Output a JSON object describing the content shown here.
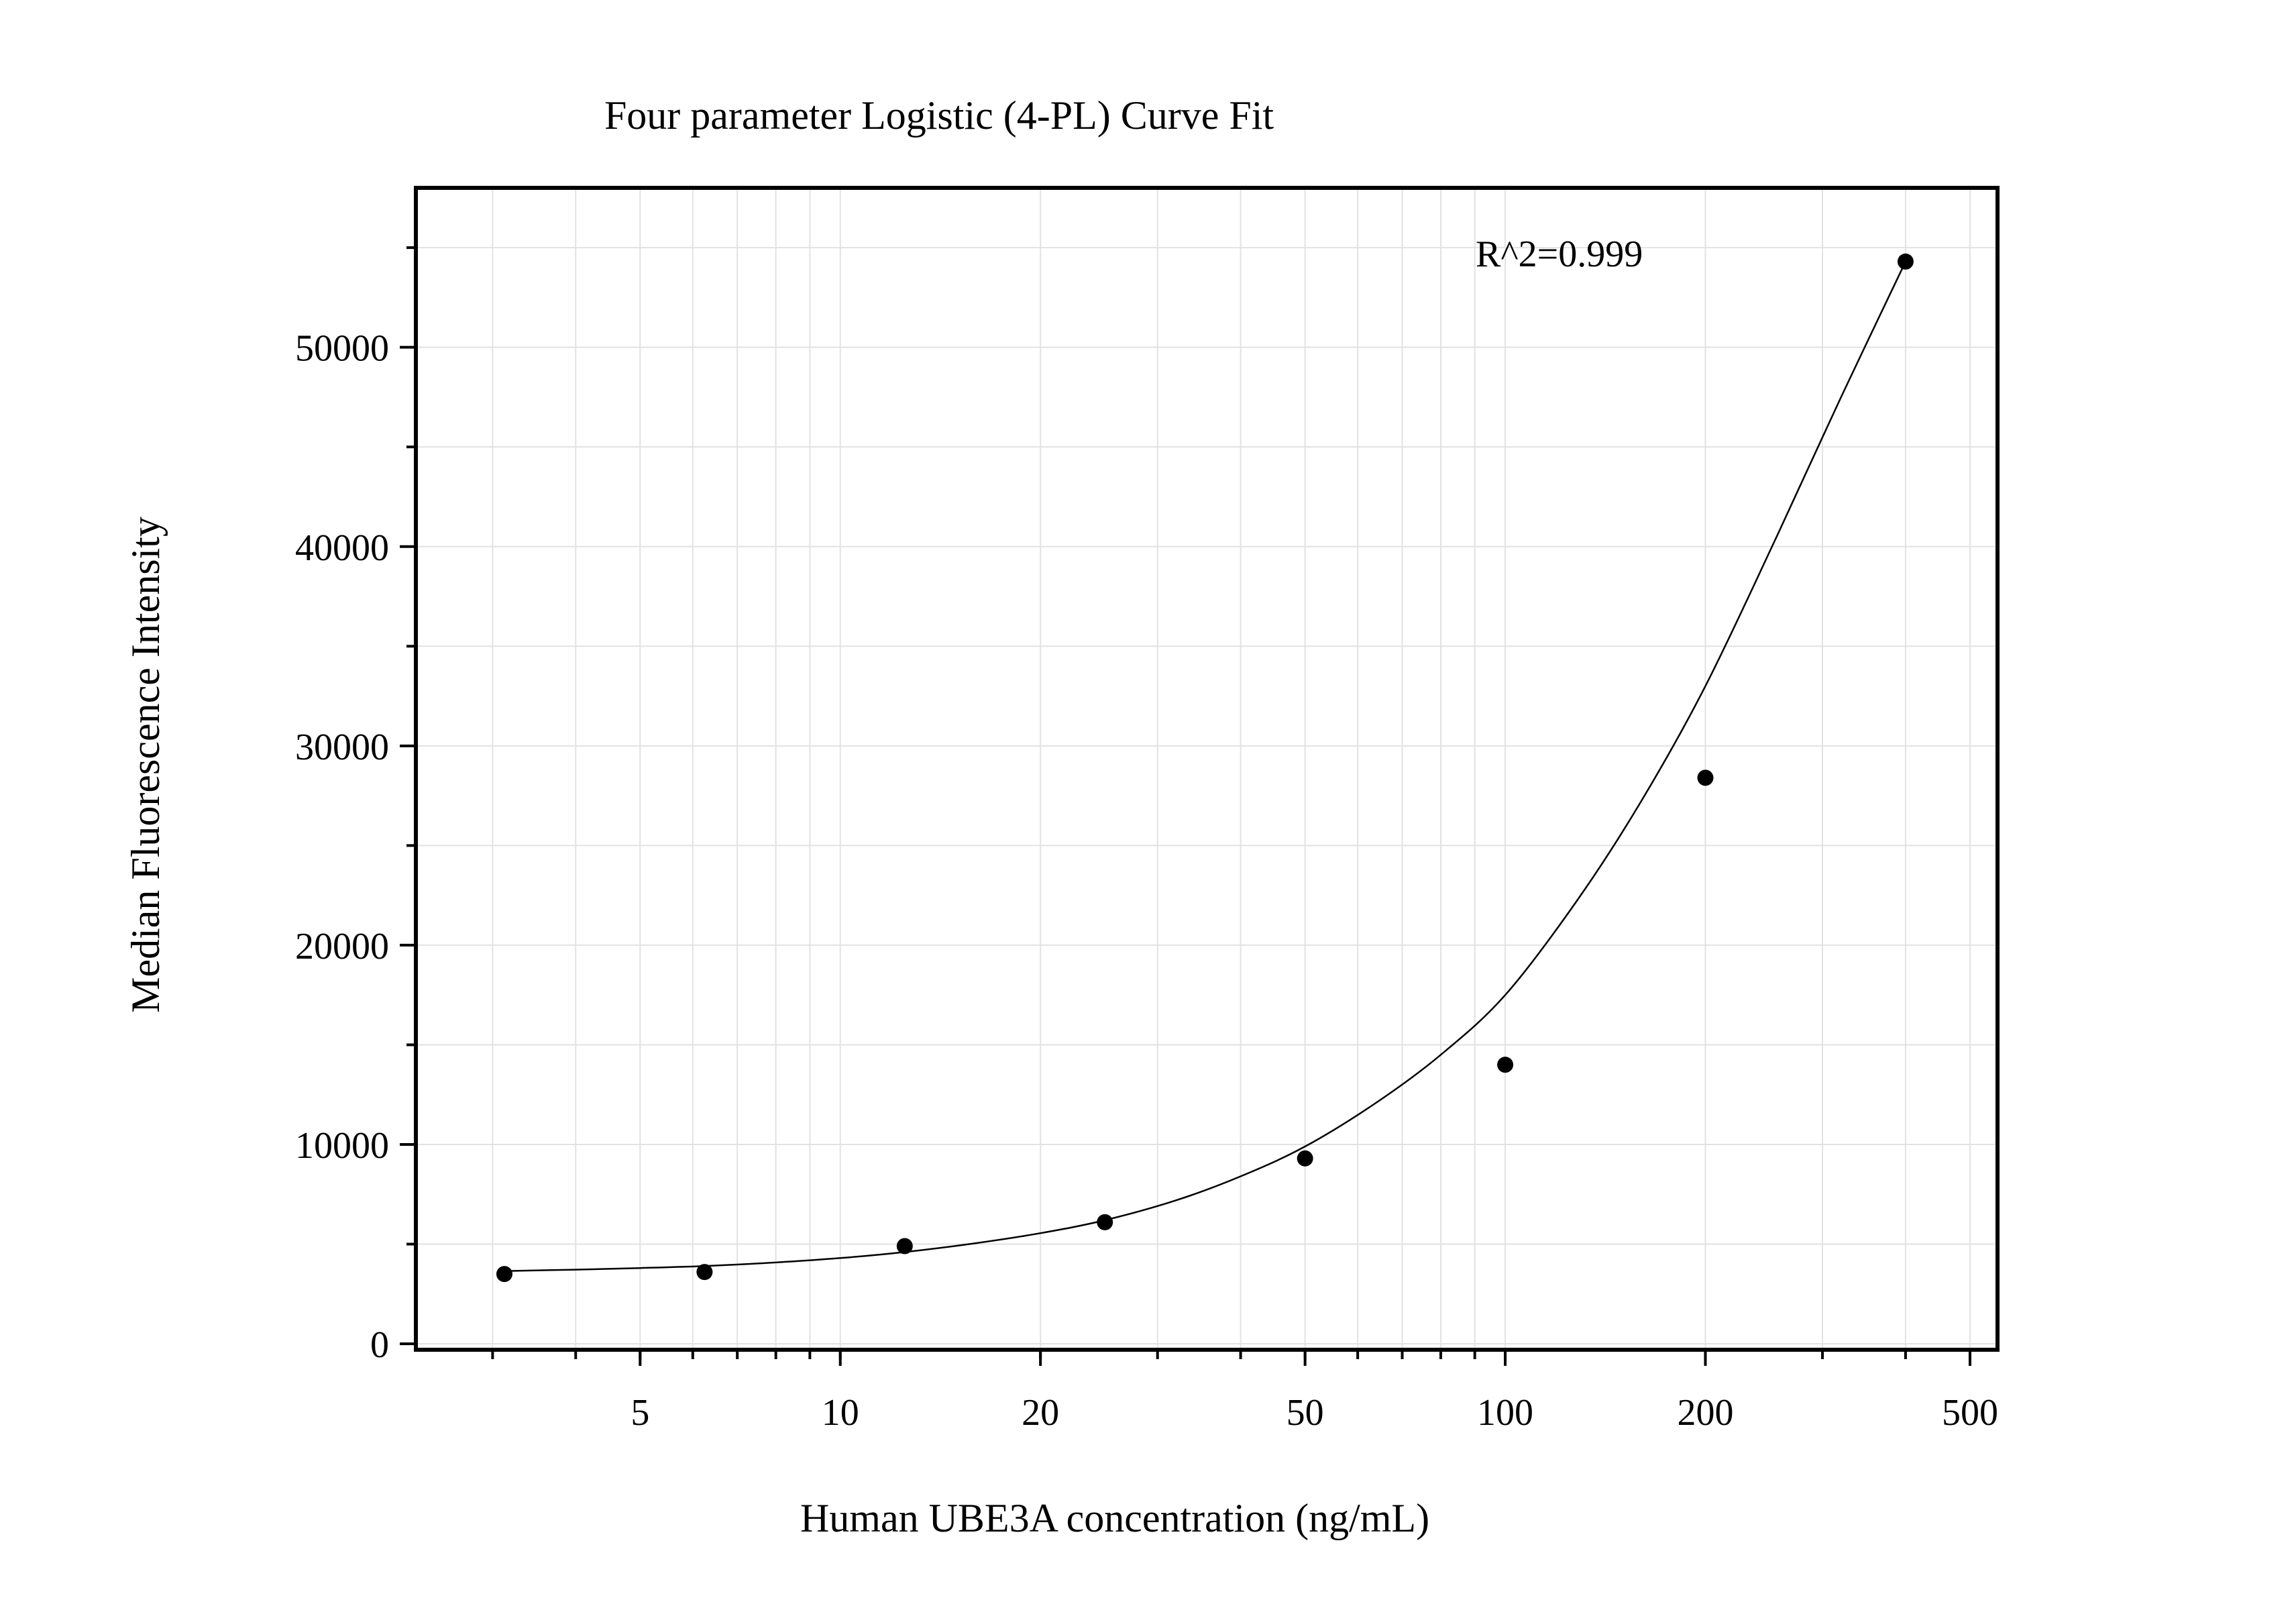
{
  "chart_data": {
    "type": "scatter",
    "title": "Four parameter Logistic (4-PL) Curve Fit",
    "xlabel": "Human UBE3A concentration (ng/mL)",
    "ylabel": "Median Fluorescence Intensity",
    "annotation": "R^2=0.999",
    "x_scale": "log",
    "xlim": [
      2.3,
      550
    ],
    "ylim": [
      -300,
      58000
    ],
    "x_ticks": [
      5,
      10,
      20,
      50,
      100,
      200,
      500
    ],
    "x_tick_labels": [
      "5",
      "10",
      "20",
      "50",
      "100",
      "200",
      "500"
    ],
    "y_ticks": [
      0,
      10000,
      20000,
      30000,
      40000,
      50000
    ],
    "y_tick_labels": [
      "0",
      "10000",
      "20000",
      "30000",
      "40000",
      "50000"
    ],
    "grid": true,
    "series": [
      {
        "kind": "points",
        "x": [
          3.125,
          6.25,
          12.5,
          25,
          50,
          100,
          200,
          400
        ],
        "y": [
          3500,
          3600,
          4900,
          6100,
          9300,
          14000,
          28400,
          54300
        ]
      },
      {
        "kind": "fit-curve",
        "x": [
          3.125,
          4,
          5,
          6.25,
          8,
          10,
          12.5,
          16,
          20,
          25,
          32,
          40,
          50,
          64,
          80,
          100,
          128,
          160,
          200,
          256,
          320,
          400
        ],
        "y": [
          3650,
          3720,
          3800,
          3900,
          4080,
          4300,
          4600,
          5050,
          5550,
          6200,
          7200,
          8400,
          9900,
          12100,
          14500,
          17500,
          22200,
          27200,
          33000,
          40500,
          47500,
          54300
        ]
      }
    ]
  }
}
